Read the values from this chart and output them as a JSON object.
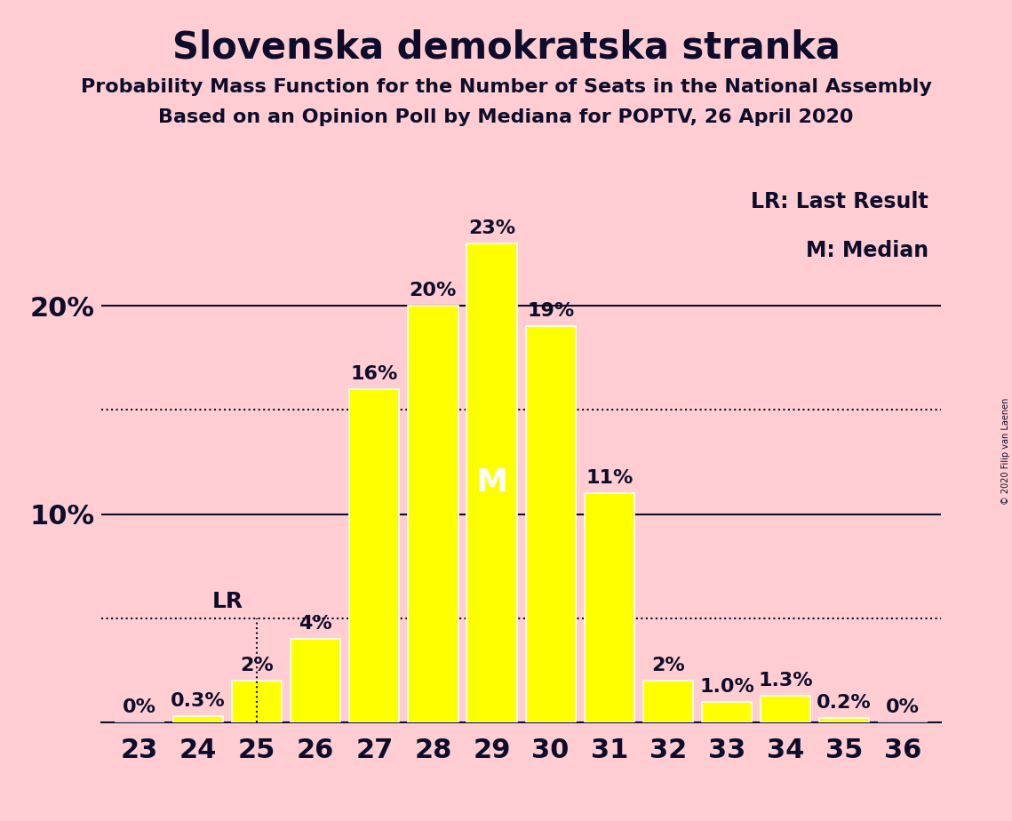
{
  "title": "Slovenska demokratska stranka",
  "subtitle1": "Probability Mass Function for the Number of Seats in the National Assembly",
  "subtitle2": "Based on an Opinion Poll by Mediana for POPTV, 26 April 2020",
  "copyright": "© 2020 Filip van Laenen",
  "legend_lr": "LR: Last Result",
  "legend_m": "M: Median",
  "background_color": "#FFCDD2",
  "bar_color": "#FFFF00",
  "bar_edge_color": "#FFFFFF",
  "categories": [
    23,
    24,
    25,
    26,
    27,
    28,
    29,
    30,
    31,
    32,
    33,
    34,
    35,
    36
  ],
  "values": [
    0.0,
    0.3,
    2.0,
    4.0,
    16.0,
    20.0,
    23.0,
    19.0,
    11.0,
    2.0,
    1.0,
    1.3,
    0.2,
    0.0
  ],
  "bar_labels": [
    "0%",
    "0.3%",
    "2%",
    "4%",
    "16%",
    "20%",
    "23%",
    "19%",
    "11%",
    "2%",
    "1.0%",
    "1.3%",
    "0.2%",
    "0%"
  ],
  "median_seat": 29,
  "lr_seat": 25,
  "lr_value": 5.0,
  "solid_lines": [
    10.0,
    20.0
  ],
  "dotted_lines": [
    5.0,
    15.0
  ],
  "ylim": [
    0,
    26
  ],
  "title_fontsize": 30,
  "subtitle_fontsize": 16,
  "axis_label_fontsize": 22,
  "bar_label_fontsize": 16,
  "tick_fontsize": 22,
  "text_color": "#0d0d2b"
}
